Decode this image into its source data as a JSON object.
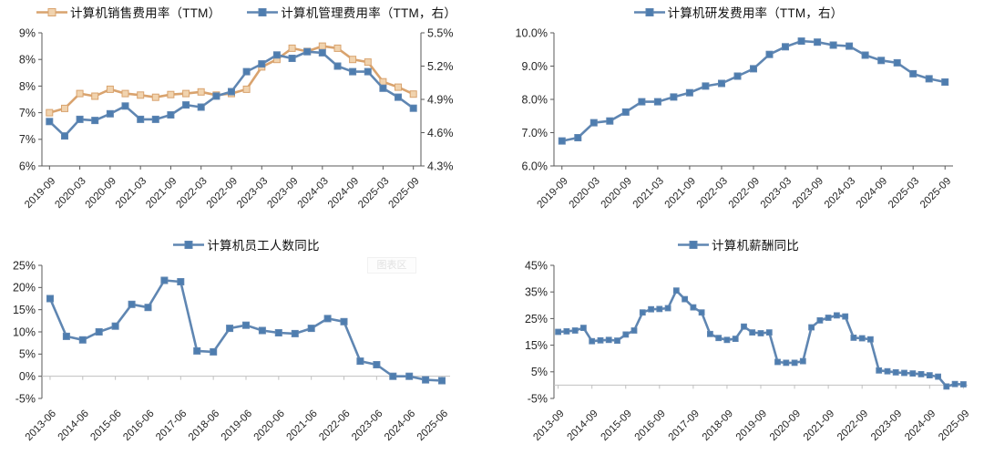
{
  "palette": {
    "orange_line": "#D9A36E",
    "orange_marker": "#F1D3AE",
    "blue_line": "#5F86B2",
    "blue_marker": "#4E7DAF",
    "axis_line": "#595959",
    "zero_line": "#C0C0C0",
    "text": "#262626"
  },
  "watermark": {
    "label": "图表区"
  },
  "chart_data": [
    {
      "id": "expense-sales-mgmt",
      "type": "line",
      "legend": [
        {
          "label": "计算机销售费用率（TTM）"
        },
        {
          "label": "计算机管理费用率（TTM，右）"
        }
      ],
      "x": [
        "2019-09",
        "2019-12",
        "2020-03",
        "2020-06",
        "2020-09",
        "2020-12",
        "2021-03",
        "2021-06",
        "2021-09",
        "2021-12",
        "2022-03",
        "2022-06",
        "2022-09",
        "2022-12",
        "2023-03",
        "2023-06",
        "2023-09",
        "2023-12",
        "2024-03",
        "2024-06",
        "2024-09",
        "2024-12",
        "2025-03",
        "2025-06",
        "2025-09"
      ],
      "label_step": 2,
      "left_axis": {
        "min": 6.0,
        "max": 8.5,
        "ticks": [
          {
            "label": "9%",
            "value": 8.5
          },
          {
            "label": "8%",
            "value": 8.0
          },
          {
            "label": "8%",
            "value": 7.5
          },
          {
            "label": "7%",
            "value": 7.0
          },
          {
            "label": "7%",
            "value": 6.5
          },
          {
            "label": "6%",
            "value": 6.0
          }
        ]
      },
      "right_axis": {
        "min": 4.3,
        "max": 5.5,
        "ticks": [
          {
            "label": "5.5%",
            "value": 5.5
          },
          {
            "label": "5.2%",
            "value": 5.2
          },
          {
            "label": "4.9%",
            "value": 4.9
          },
          {
            "label": "4.6%",
            "value": 4.6
          },
          {
            "label": "4.3%",
            "value": 4.3
          }
        ]
      },
      "series": [
        {
          "name": "计算机销售费用率（TTM）",
          "color": "orange",
          "axis": "left",
          "values": [
            7.0,
            7.08,
            7.36,
            7.31,
            7.44,
            7.36,
            7.33,
            7.29,
            7.34,
            7.36,
            7.39,
            7.33,
            7.36,
            7.44,
            7.86,
            8.0,
            8.21,
            8.15,
            8.25,
            8.21,
            8.0,
            7.95,
            7.58,
            7.48,
            7.35
          ]
        },
        {
          "name": "计算机管理费用率（TTM，右）",
          "color": "blue",
          "axis": "right",
          "values": [
            4.7,
            4.57,
            4.72,
            4.71,
            4.77,
            4.84,
            4.72,
            4.72,
            4.76,
            4.85,
            4.83,
            4.93,
            4.97,
            5.15,
            5.22,
            5.3,
            5.27,
            5.33,
            5.32,
            5.2,
            5.15,
            5.15,
            5.0,
            4.92,
            4.82
          ]
        }
      ],
      "grid": false,
      "legend_position": "top"
    },
    {
      "id": "expense-rnd",
      "type": "line",
      "legend": [
        {
          "label": "计算机研发费用率（TTM，右）"
        }
      ],
      "x": [
        "2019-09",
        "2019-12",
        "2020-03",
        "2020-06",
        "2020-09",
        "2020-12",
        "2021-03",
        "2021-06",
        "2021-09",
        "2021-12",
        "2022-03",
        "2022-06",
        "2022-09",
        "2022-12",
        "2023-03",
        "2023-06",
        "2023-09",
        "2023-12",
        "2024-03",
        "2024-06",
        "2024-09",
        "2024-12",
        "2025-03",
        "2025-06",
        "2025-09"
      ],
      "label_step": 2,
      "left_axis": {
        "min": 6.0,
        "max": 10.0,
        "ticks": [
          {
            "label": "10.0%",
            "value": 10.0
          },
          {
            "label": "9.0%",
            "value": 9.0
          },
          {
            "label": "8.0%",
            "value": 8.0
          },
          {
            "label": "7.0%",
            "value": 7.0
          },
          {
            "label": "6.0%",
            "value": 6.0
          }
        ]
      },
      "series": [
        {
          "name": "计算机研发费用率（TTM，右）",
          "color": "blue",
          "axis": "left",
          "values": [
            6.75,
            6.85,
            7.3,
            7.35,
            7.62,
            7.93,
            7.93,
            8.07,
            8.2,
            8.4,
            8.48,
            8.7,
            8.92,
            9.35,
            9.58,
            9.75,
            9.72,
            9.63,
            9.6,
            9.33,
            9.17,
            9.1,
            8.77,
            8.62,
            8.52
          ]
        }
      ],
      "grid": false,
      "legend_position": "top"
    },
    {
      "id": "headcount-yoy",
      "type": "line",
      "legend": [
        {
          "label": "计算机员工人数同比"
        }
      ],
      "x": [
        "2013-06",
        "2013-12",
        "2014-06",
        "2014-12",
        "2015-06",
        "2015-12",
        "2016-06",
        "2016-12",
        "2017-06",
        "2017-12",
        "2018-06",
        "2018-12",
        "2019-06",
        "2019-12",
        "2020-06",
        "2020-12",
        "2021-06",
        "2021-12",
        "2022-06",
        "2022-12",
        "2023-06",
        "2023-12",
        "2024-06",
        "2024-12",
        "2025-06"
      ],
      "label_step": 2,
      "left_axis": {
        "min": -5,
        "max": 25,
        "ticks": [
          {
            "label": "25%",
            "value": 25
          },
          {
            "label": "20%",
            "value": 20
          },
          {
            "label": "15%",
            "value": 15
          },
          {
            "label": "10%",
            "value": 10
          },
          {
            "label": "5%",
            "value": 5
          },
          {
            "label": "0%",
            "value": 0
          },
          {
            "label": "-5%",
            "value": -5
          }
        ]
      },
      "zero_axis": true,
      "series": [
        {
          "name": "计算机员工人数同比",
          "color": "blue",
          "axis": "left",
          "values": [
            17.5,
            9.0,
            8.2,
            10.0,
            11.3,
            16.2,
            15.5,
            21.6,
            21.3,
            5.7,
            5.5,
            10.8,
            11.5,
            10.3,
            9.8,
            9.6,
            10.8,
            13.0,
            12.3,
            3.4,
            2.6,
            0.0,
            0.0,
            -0.8,
            -1.0
          ]
        }
      ],
      "grid": false,
      "legend_position": "top"
    },
    {
      "id": "salary-yoy",
      "type": "line",
      "legend": [
        {
          "label": "计算机薪酬同比"
        }
      ],
      "x": [
        "2013-09",
        "2013-12",
        "2014-03",
        "2014-06",
        "2014-09",
        "2014-12",
        "2015-03",
        "2015-06",
        "2015-09",
        "2015-12",
        "2016-03",
        "2016-06",
        "2016-09",
        "2016-12",
        "2017-03",
        "2017-06",
        "2017-09",
        "2017-12",
        "2018-03",
        "2018-06",
        "2018-09",
        "2018-12",
        "2019-03",
        "2019-06",
        "2019-09",
        "2019-12",
        "2020-03",
        "2020-06",
        "2020-09",
        "2020-12",
        "2021-03",
        "2021-06",
        "2021-09",
        "2021-12",
        "2022-03",
        "2022-06",
        "2022-09",
        "2022-12",
        "2023-03",
        "2023-06",
        "2023-09",
        "2023-12",
        "2024-03",
        "2024-06",
        "2024-09",
        "2024-12",
        "2025-03",
        "2025-06",
        "2025-09"
      ],
      "label_step": 4,
      "left_axis": {
        "min": -5,
        "max": 45,
        "ticks": [
          {
            "label": "45%",
            "value": 45
          },
          {
            "label": "35%",
            "value": 35
          },
          {
            "label": "25%",
            "value": 25
          },
          {
            "label": "15%",
            "value": 15
          },
          {
            "label": "5%",
            "value": 5
          },
          {
            "label": "-5%",
            "value": -5
          }
        ]
      },
      "zero_axis": true,
      "series": [
        {
          "name": "计算机薪酬同比",
          "color": "blue",
          "axis": "left",
          "values": [
            20.0,
            20.2,
            20.5,
            21.5,
            16.5,
            16.8,
            17.0,
            16.7,
            19.0,
            20.5,
            27.3,
            28.5,
            28.6,
            28.9,
            35.5,
            32.3,
            29.2,
            27.3,
            19.2,
            17.7,
            17.0,
            17.4,
            22.0,
            19.8,
            19.5,
            19.8,
            8.7,
            8.4,
            8.4,
            9.0,
            21.7,
            24.3,
            25.3,
            26.2,
            25.8,
            17.8,
            17.6,
            17.2,
            5.5,
            5.2,
            4.8,
            4.6,
            4.4,
            4.1,
            3.7,
            3.2,
            -0.5,
            0.4,
            0.3
          ]
        }
      ],
      "grid": false,
      "legend_position": "top"
    }
  ]
}
